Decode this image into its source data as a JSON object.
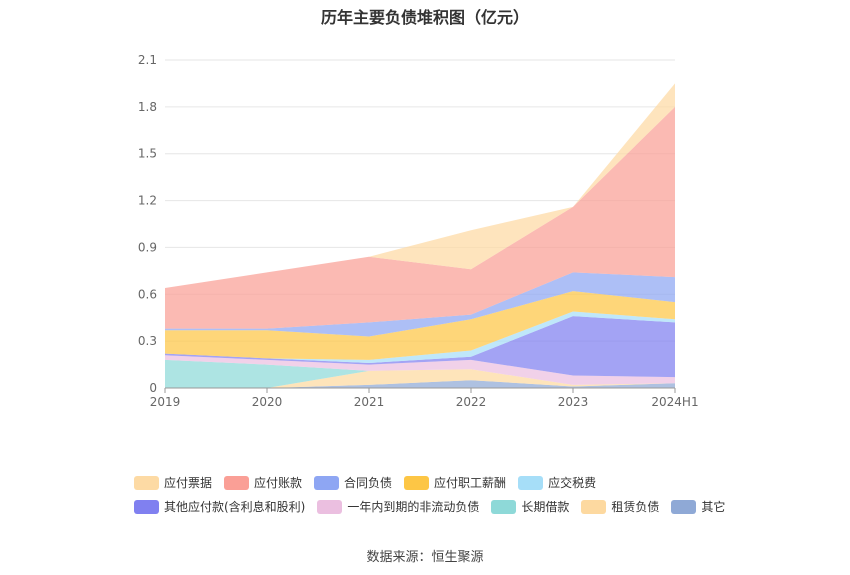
{
  "chart_data": {
    "type": "area",
    "stacked": true,
    "title": "历年主要负债堆积图（亿元）",
    "x": [
      "2019",
      "2020",
      "2021",
      "2022",
      "2023",
      "2024H1"
    ],
    "ylim": [
      0,
      2.1
    ],
    "yticks": [
      "0",
      "0.3",
      "0.6",
      "0.9",
      "1.2",
      "1.5",
      "1.8",
      "2.1"
    ],
    "grid": true,
    "legend_position": "bottom",
    "series": [
      {
        "name": "其它",
        "color": "#8fa9d6",
        "values": [
          0.0,
          0.0,
          0.02,
          0.05,
          0.01,
          0.03
        ]
      },
      {
        "name": "租赁负债",
        "color": "#fdd9a0",
        "values": [
          0.0,
          0.0,
          0.09,
          0.07,
          0.01,
          0.0
        ]
      },
      {
        "name": "长期借款",
        "color": "#8ed9d8",
        "values": [
          0.18,
          0.15,
          0.0,
          0.0,
          0.0,
          0.0
        ]
      },
      {
        "name": "一年内到期的非流动负债",
        "color": "#ebbfe0",
        "values": [
          0.03,
          0.03,
          0.04,
          0.06,
          0.06,
          0.04
        ]
      },
      {
        "name": "其他应付款(含利息和股利)",
        "color": "#8080f0",
        "values": [
          0.01,
          0.01,
          0.01,
          0.02,
          0.38,
          0.35
        ]
      },
      {
        "name": "应交税费",
        "color": "#a6def8",
        "values": [
          0.0,
          0.0,
          0.02,
          0.04,
          0.03,
          0.02
        ]
      },
      {
        "name": "应付职工薪酬",
        "color": "#fdc645",
        "values": [
          0.15,
          0.18,
          0.15,
          0.2,
          0.13,
          0.11
        ]
      },
      {
        "name": "合同负债",
        "color": "#8ea6f3",
        "values": [
          0.01,
          0.01,
          0.09,
          0.03,
          0.12,
          0.16
        ]
      },
      {
        "name": "应付账款",
        "color": "#fa9f96",
        "values": [
          0.26,
          0.36,
          0.42,
          0.29,
          0.42,
          1.09
        ]
      },
      {
        "name": "应付票据",
        "color": "#fddaa4",
        "values": [
          0.0,
          0.0,
          0.0,
          0.25,
          0.0,
          0.15
        ]
      }
    ],
    "legend_order": [
      "应付票据",
      "应付账款",
      "合同负债",
      "应付职工薪酬",
      "应交税费",
      "其他应付款(含利息和股利)",
      "一年内到期的非流动负债",
      "长期借款",
      "租赁负债",
      "其它"
    ]
  },
  "source": "数据来源：恒生聚源"
}
